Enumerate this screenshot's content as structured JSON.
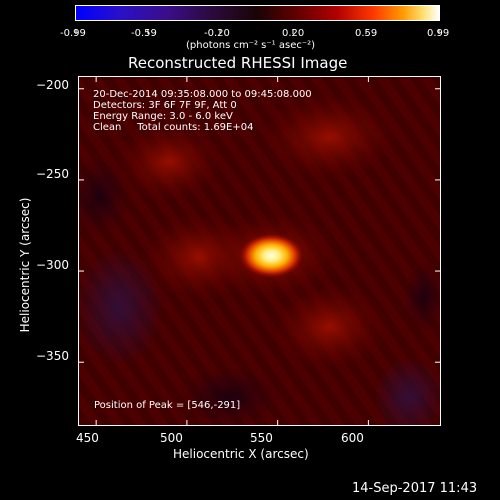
{
  "colorbar": {
    "ticks": [
      "-0.99",
      "-0.59",
      "-0.20",
      "0.20",
      "0.59",
      "0.99"
    ],
    "unit_label": "(photons cm⁻² s⁻¹ asec⁻²)"
  },
  "plot": {
    "title": "Reconstructed RHESSI Image",
    "xlabel": "Heliocentric X (arcsec)",
    "ylabel": "Heliocentric Y (arcsec)",
    "x_ticks": [
      "450",
      "500",
      "550",
      "600"
    ],
    "y_ticks": [
      "−200",
      "−250",
      "−300",
      "−350"
    ],
    "info_lines": [
      "20-Dec-2014 09:35:08.000 to 09:45:08.000",
      "Detectors: 3F 6F 7F 9F, Att 0",
      "Energy Range: 3.0 - 6.0 keV",
      "Clean     Total counts: 1.69E+04"
    ],
    "peak_label": "Position of Peak = [546,-291]"
  },
  "footer": {
    "timestamp": "14-Sep-2017 11:43"
  },
  "colors": {
    "background": "#000000",
    "foreground": "#ffffff",
    "image_base": "#4c0000",
    "peak_core": "#ffffe0"
  },
  "chart_data": {
    "type": "heatmap",
    "title": "Reconstructed RHESSI Image",
    "xlabel": "Heliocentric X (arcsec)",
    "ylabel": "Heliocentric Y (arcsec)",
    "xlim": [
      440,
      640
    ],
    "ylim": [
      -385,
      -193
    ],
    "x_ticks": [
      450,
      500,
      550,
      600
    ],
    "y_ticks": [
      -200,
      -250,
      -300,
      -350
    ],
    "colorbar_range": [
      -0.99,
      0.99
    ],
    "colorbar_ticks": [
      -0.99,
      -0.59,
      -0.2,
      0.2,
      0.59,
      0.99
    ],
    "peak": {
      "x": 546,
      "y": -291
    },
    "total_counts": "1.69E+04",
    "energy_range_kev": [
      3.0,
      6.0
    ]
  }
}
